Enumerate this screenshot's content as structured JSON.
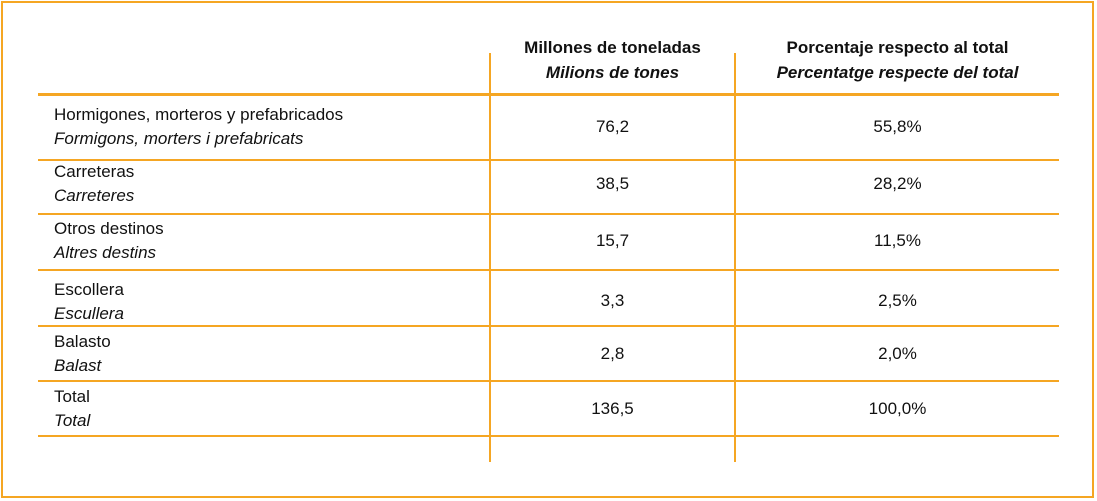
{
  "colors": {
    "accent": "#f5a623"
  },
  "table": {
    "headers": [
      {
        "main": "",
        "alt": ""
      },
      {
        "main": "Millones de toneladas",
        "alt": "Milions de tones"
      },
      {
        "main": "Porcentaje respecto al total",
        "alt": "Percentatge respecte del total"
      }
    ],
    "rows": [
      {
        "label": "Hormigones, morteros y prefabricados",
        "label_alt": "Formigons, morters i prefabricats",
        "tons": "76,2",
        "pct": "55,8%"
      },
      {
        "label": "Carreteras",
        "label_alt": "Carreteres",
        "tons": "38,5",
        "pct": "28,2%"
      },
      {
        "label": "Otros destinos",
        "label_alt": "Altres destins",
        "tons": "15,7",
        "pct": "11,5%"
      },
      {
        "label": "Escollera",
        "label_alt": "Escullera",
        "tons": "3,3",
        "pct": "2,5%"
      },
      {
        "label": "Balasto",
        "label_alt": "Balast",
        "tons": "2,8",
        "pct": "2,0%"
      },
      {
        "label": "Total",
        "label_alt": "Total",
        "tons": "136,5",
        "pct": "100,0%"
      }
    ]
  }
}
